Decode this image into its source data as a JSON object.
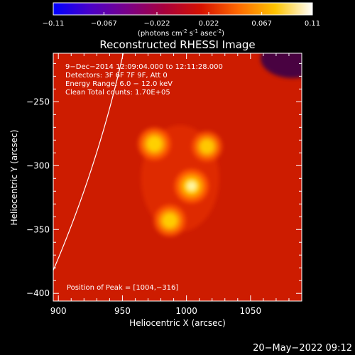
{
  "colorbar": {
    "ticks": [
      "-0.11",
      "-0.067",
      "-0.022",
      "0.022",
      "0.067",
      "0.11"
    ],
    "tick_values": [
      -0.11,
      -0.067,
      -0.022,
      0.022,
      0.067,
      0.11
    ],
    "range": [
      -0.11,
      0.11
    ],
    "units_text": "(photons cm",
    "units_exp1": "-2",
    "units_mid": " s",
    "units_exp2": "-1",
    "units_end": " asec",
    "units_exp3": "-2",
    "units_close": ")",
    "colors": [
      "#0000ff",
      "#4b00c8",
      "#7a0088",
      "#a8003c",
      "#d61200",
      "#ff6a00",
      "#ffc400",
      "#ffffff"
    ]
  },
  "chart_data": {
    "type": "heatmap",
    "title": "Reconstructed RHESSI Image",
    "xlabel": "Heliocentric X (arcsec)",
    "ylabel": "Heliocentric Y (arcsec)",
    "xlim": [
      896,
      1090
    ],
    "ylim": [
      -406,
      -212
    ],
    "x_ticks": [
      900,
      950,
      1000,
      1050
    ],
    "y_ticks": [
      -250,
      -300,
      -350,
      -400
    ],
    "x_tick_labels": [
      "900",
      "950",
      "1000",
      "1050"
    ],
    "y_tick_labels": [
      "−250",
      "−300",
      "−350",
      "−400"
    ],
    "sources": [
      {
        "x": 1004,
        "y": -316,
        "peak": 0.11
      },
      {
        "x": 975,
        "y": -283,
        "peak": 0.095
      },
      {
        "x": 987,
        "y": -343,
        "peak": 0.085
      },
      {
        "x": 1016,
        "y": -285,
        "peak": 0.07
      }
    ],
    "annotations": [
      "9−Dec−2014 12:09:04.000 to 12:11:28.000",
      "Detectors: 3F 6F 7F 9F, Att 0",
      "Energy Range: 6.0 − 12.0 keV",
      "Clean    Total counts: 1.70E+05"
    ],
    "peak_label": "Position of Peak = [1004,−316]",
    "peak_position": [
      1004,
      -316
    ],
    "limb": {
      "shown": true,
      "radius_arcsec": 974
    }
  },
  "footer": {
    "timestamp": "20−May−2022 09:12"
  }
}
